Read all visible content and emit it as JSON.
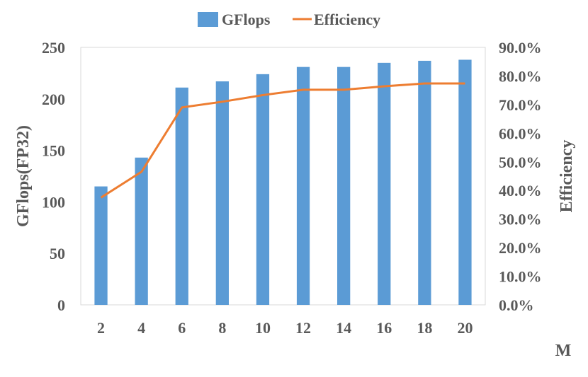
{
  "chart_data": {
    "type": "bar",
    "categories": [
      "2",
      "4",
      "6",
      "8",
      "10",
      "12",
      "14",
      "16",
      "18",
      "20"
    ],
    "series": [
      {
        "name": "GFlops",
        "type": "bar",
        "axis": "left",
        "color": "#5B9BD5",
        "values": [
          115,
          143,
          211,
          217,
          224,
          231,
          231,
          235,
          237,
          238
        ]
      },
      {
        "name": "Efficiency",
        "type": "line",
        "axis": "right",
        "color": "#ED7D31",
        "values": [
          0.375,
          0.465,
          0.69,
          0.71,
          0.733,
          0.752,
          0.752,
          0.764,
          0.774,
          0.774
        ]
      }
    ],
    "xlabel": "M",
    "ylabel": "GFlops(FP32)",
    "y2label": "Efficiency",
    "ylim": [
      0,
      250
    ],
    "y2lim": [
      0,
      0.9
    ],
    "yticks": [
      "0",
      "50",
      "100",
      "150",
      "200",
      "250"
    ],
    "y2ticks": [
      "0.0%",
      "10.0%",
      "20.0%",
      "30.0%",
      "40.0%",
      "50.0%",
      "60.0%",
      "70.0%",
      "80.0%",
      "90.0%"
    ],
    "legend_position": "top-center",
    "grid": false
  }
}
